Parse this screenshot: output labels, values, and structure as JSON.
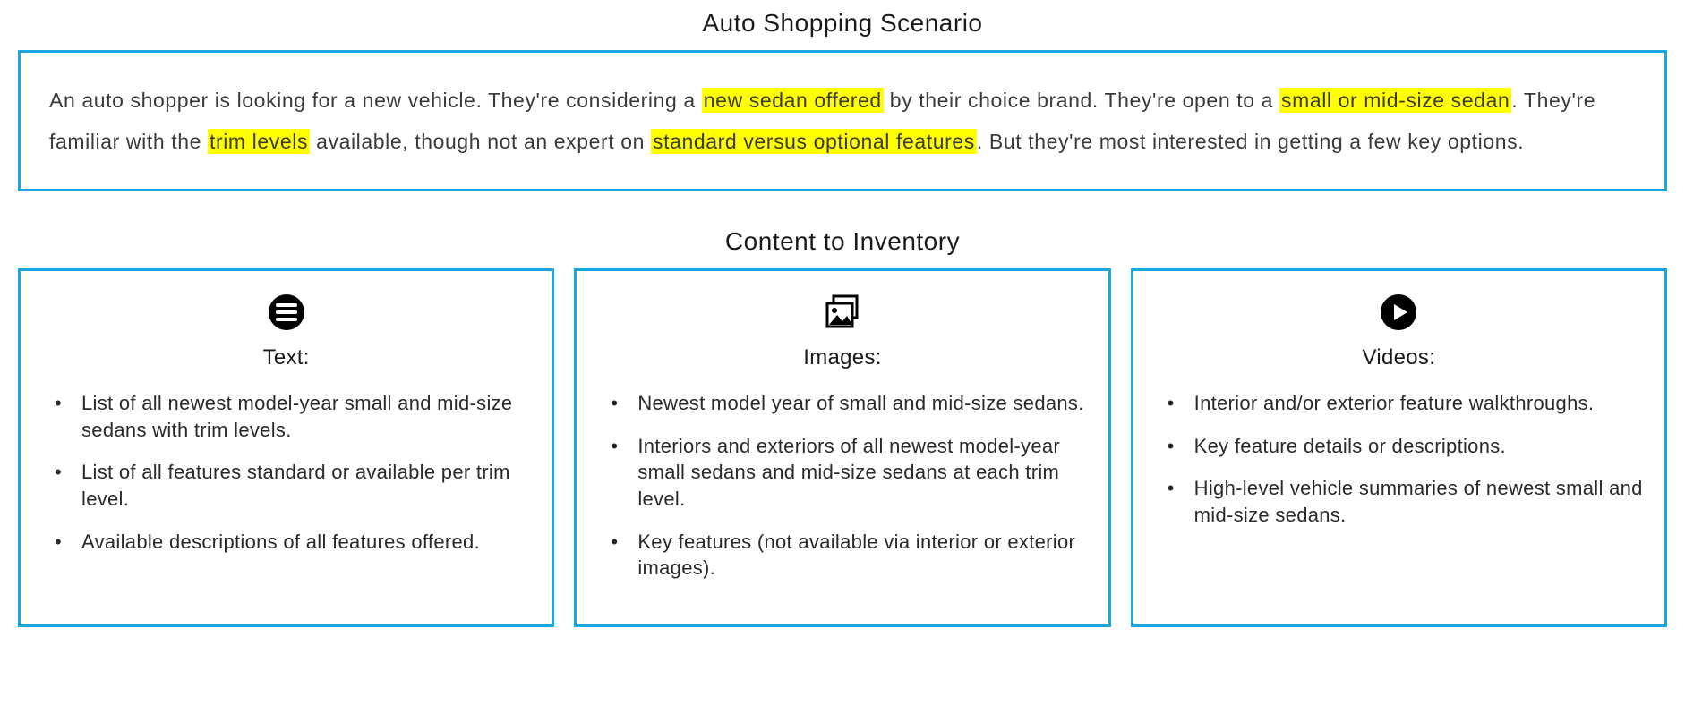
{
  "colors": {
    "border": "#1ba8e0",
    "highlight": "#ffff00",
    "text": "#1a1a1a",
    "bodyText": "#3a3a3a",
    "iconFill": "#000000"
  },
  "scenario": {
    "title": "Auto Shopping Scenario",
    "segments": [
      {
        "text": "An auto shopper is looking for a new vehicle. They're considering a ",
        "hl": false
      },
      {
        "text": "new sedan offered",
        "hl": true
      },
      {
        "text": " by their choice brand. They're open to a ",
        "hl": false
      },
      {
        "text": "small or mid-size sedan",
        "hl": true
      },
      {
        "text": ". They're familiar with the ",
        "hl": false
      },
      {
        "text": "trim levels",
        "hl": true
      },
      {
        "text": " available, though not an expert on ",
        "hl": false
      },
      {
        "text": "standard versus optional features",
        "hl": true
      },
      {
        "text": ". But they're most interested in getting a few key options.",
        "hl": false
      }
    ]
  },
  "inventory": {
    "title": "Content to Inventory",
    "cards": [
      {
        "icon": "text",
        "title": "Text:",
        "items": [
          "List of all newest model-year small and mid-size sedans with trim levels.",
          "List of all features standard or available per trim level.",
          "Available descriptions of all features offered."
        ]
      },
      {
        "icon": "images",
        "title": "Images:",
        "items": [
          "Newest model year of small and mid-size sedans.",
          "Interiors and exteriors of all newest model-year small sedans and mid-size sedans at each trim level.",
          "Key features (not available via interior or exterior images)."
        ]
      },
      {
        "icon": "video",
        "title": "Videos:",
        "items": [
          "Interior and/or exterior feature walkthroughs.",
          "Key feature details or descriptions.",
          "High-level vehicle summaries of newest small and mid-size sedans."
        ]
      }
    ]
  }
}
